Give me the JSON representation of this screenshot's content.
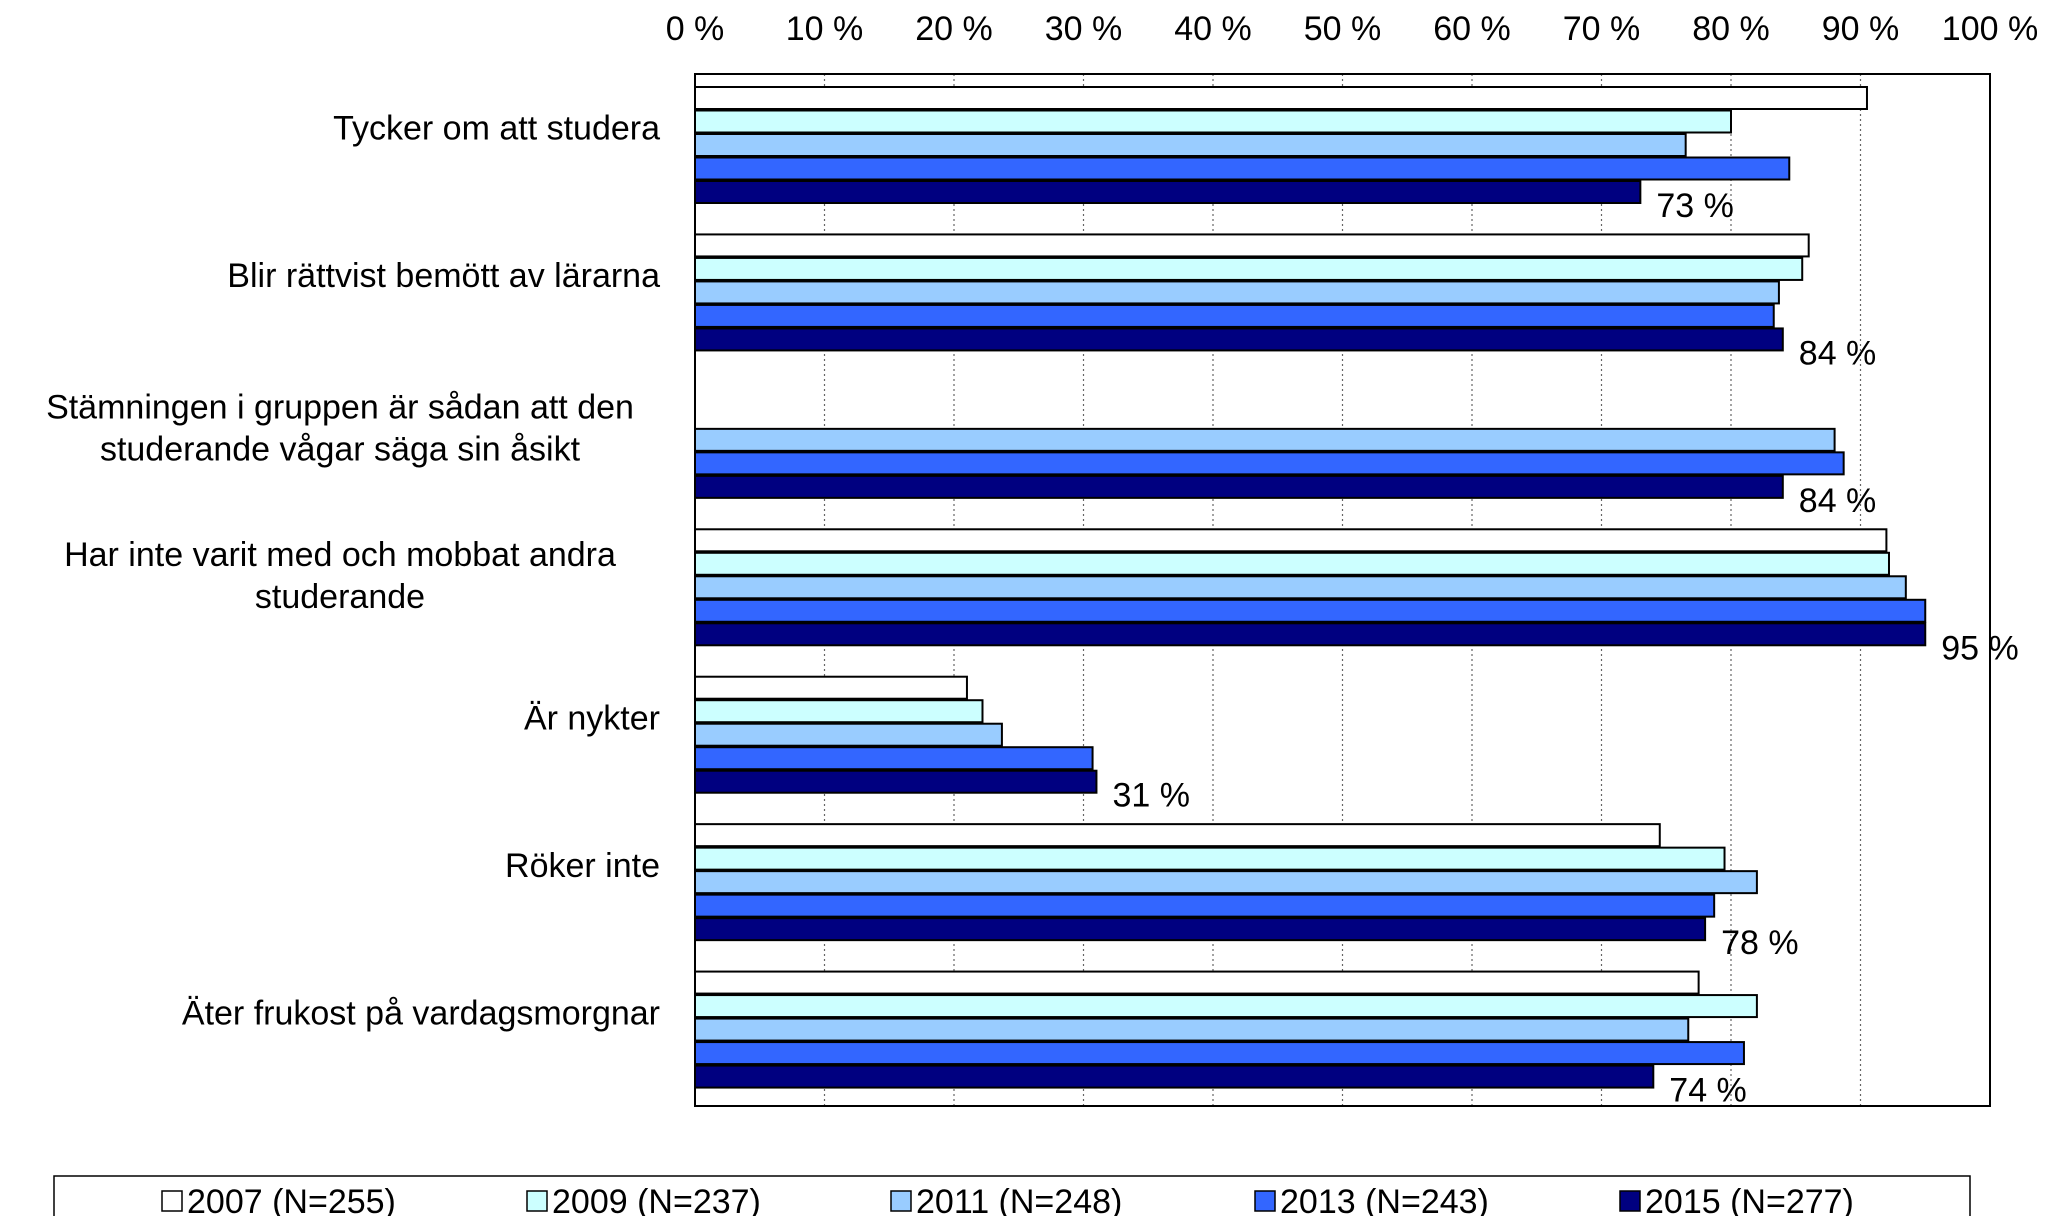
{
  "chart_data": {
    "type": "bar",
    "orientation": "horizontal",
    "categories": [
      [
        "Tycker om att studera"
      ],
      [
        "Blir rättvist bemött av lärarna"
      ],
      [
        "Stämningen i gruppen är sådan att den",
        "studerande vågar säga sin åsikt"
      ],
      [
        "Har inte varit med och mobbat andra",
        "studerande"
      ],
      [
        "Är nykter"
      ],
      [
        "Röker inte"
      ],
      [
        "Äter frukost på vardagsmorgnar"
      ]
    ],
    "series": [
      {
        "name": "2007 (N=255)",
        "color": "#ffffff",
        "values": [
          90.5,
          86,
          null,
          92,
          21,
          74.5,
          77.5
        ]
      },
      {
        "name": "2009 (N=237)",
        "color": "#ccffff",
        "values": [
          80,
          85.5,
          null,
          92.2,
          22.2,
          79.5,
          82
        ]
      },
      {
        "name": "2011 (N=248)",
        "color": "#99ccff",
        "values": [
          76.5,
          83.7,
          88,
          93.5,
          23.7,
          82,
          76.7
        ]
      },
      {
        "name": "2013 (N=243)",
        "color": "#3366ff",
        "values": [
          84.5,
          83.3,
          88.7,
          95,
          30.7,
          78.7,
          81
        ]
      },
      {
        "name": "2015 (N=277)",
        "color": "#000080",
        "values": [
          73,
          84,
          84,
          95,
          31,
          78,
          74
        ]
      }
    ],
    "data_labels": [
      "73 %",
      "84 %",
      "84 %",
      "95 %",
      "31 %",
      "78 %",
      "74 %"
    ],
    "x_ticks": [
      "0 %",
      "10 %",
      "20 %",
      "30 %",
      "40 %",
      "50 %",
      "60 %",
      "70 %",
      "80 %",
      "90 %",
      "100 %"
    ],
    "xlim": [
      0,
      100
    ],
    "x_axis_position": "top",
    "grid": "vertical-dotted",
    "legend_position": "bottom"
  }
}
